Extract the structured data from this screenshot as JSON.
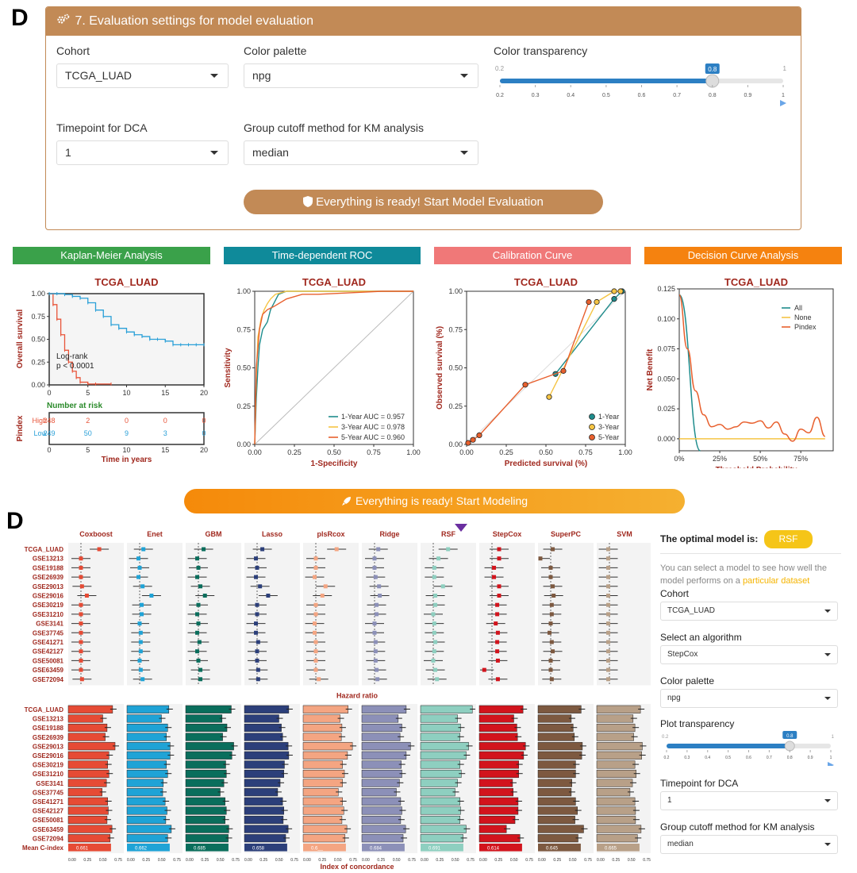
{
  "panel_letters": {
    "top": "D",
    "bottom": "D"
  },
  "settings": {
    "title": "7. Evaluation settings for model evaluation",
    "cohort_label": "Cohort",
    "cohort_value": "TCGA_LUAD",
    "palette_label": "Color palette",
    "palette_value": "npg",
    "transparency_label": "Color transparency",
    "transparency": {
      "min": 0.2,
      "max": 1,
      "value": 0.8,
      "min_label": "0.2",
      "max_label": "1",
      "value_label": "0.8",
      "ticks": [
        "0.2",
        "0.3",
        "0.4",
        "0.5",
        "0.6",
        "0.7",
        "0.8",
        "0.9",
        "1"
      ]
    },
    "timepoint_label": "Timepoint for DCA",
    "timepoint_value": "1",
    "cutoff_label": "Group cutoff method for KM analysis",
    "cutoff_value": "median",
    "eval_button": "Everything is ready! Start Model Evaluation"
  },
  "sections": {
    "km": "Kaplan-Meier Analysis",
    "roc": "Time-dependent ROC",
    "cal": "Calibration Curve",
    "dca": "Decision Curve Analysis"
  },
  "colors": {
    "km": "#3aa14a",
    "roc": "#0f8a9a",
    "cal": "#f07878",
    "dca": "#f5820f",
    "brown": "#c28a56",
    "dark_red": "#a0281e",
    "orange": "#f5a623"
  },
  "modeling_button": "Everything is ready! Start Modeling",
  "chart_data": [
    {
      "type": "line",
      "subtype": "kaplan-meier",
      "title": "TCGA_LUAD",
      "xlabel": "Time in years",
      "ylabel": "Overall survival",
      "xlim": [
        0,
        20
      ],
      "ylim": [
        0,
        1
      ],
      "x_ticks": [
        "0",
        "5",
        "10",
        "15",
        "20"
      ],
      "y_ticks": [
        "0.00",
        "0.25",
        "0.50",
        "0.75",
        "1.00"
      ],
      "series": [
        {
          "name": "High",
          "color": "#e8553a",
          "x": [
            0,
            0.5,
            1,
            1.5,
            2,
            2.5,
            3,
            3.5,
            4,
            5,
            6,
            8
          ],
          "y": [
            1.0,
            0.88,
            0.72,
            0.55,
            0.38,
            0.25,
            0.15,
            0.08,
            0.03,
            0.01,
            0.01,
            0.01
          ]
        },
        {
          "name": "Low",
          "color": "#2aa0d8",
          "x": [
            0,
            1,
            2,
            3,
            4,
            5,
            6,
            7,
            8,
            9,
            10,
            11,
            12,
            13,
            14,
            15,
            16,
            17,
            18,
            19,
            20
          ],
          "y": [
            1.0,
            1.0,
            0.99,
            0.97,
            0.95,
            0.9,
            0.82,
            0.75,
            0.66,
            0.62,
            0.58,
            0.55,
            0.53,
            0.5,
            0.5,
            0.48,
            0.44,
            0.44,
            0.44,
            0.44,
            0.44
          ]
        }
      ],
      "annotation": [
        "Log-rank",
        "p < 0.0001"
      ],
      "risk_table": {
        "title": "Number at risk",
        "group_label": "Pindex",
        "rows": [
          {
            "name": "High",
            "values": [
              "248",
              "2",
              "0",
              "0",
              "0"
            ]
          },
          {
            "name": "Low",
            "values": [
              "249",
              "50",
              "9",
              "3",
              "0"
            ]
          }
        ]
      }
    },
    {
      "type": "line",
      "subtype": "roc",
      "title": "TCGA_LUAD",
      "xlabel": "1-Specificity",
      "ylabel": "Sensitivity",
      "xlim": [
        0,
        1
      ],
      "ylim": [
        0,
        1
      ],
      "x_ticks": [
        "0.00",
        "0.25",
        "0.50",
        "0.75",
        "1.00"
      ],
      "y_ticks": [
        "0.00",
        "0.25",
        "0.50",
        "0.75",
        "1.00"
      ],
      "series": [
        {
          "name": "1-Year AUC = 0.957",
          "color": "#1e8c8c",
          "x": [
            0,
            0.01,
            0.02,
            0.03,
            0.05,
            0.08,
            0.1,
            0.12,
            0.15,
            0.2,
            0.5,
            1
          ],
          "y": [
            0,
            0.3,
            0.5,
            0.65,
            0.75,
            0.8,
            0.88,
            0.92,
            0.98,
            1,
            1,
            1
          ]
        },
        {
          "name": "3-Year AUC = 0.978",
          "color": "#f5c444",
          "x": [
            0,
            0.01,
            0.02,
            0.04,
            0.06,
            0.08,
            0.1,
            0.13,
            0.2,
            0.5,
            1
          ],
          "y": [
            0,
            0.45,
            0.7,
            0.82,
            0.88,
            0.92,
            0.95,
            0.98,
            1,
            1,
            1
          ]
        },
        {
          "name": "5-Year AUC = 0.960",
          "color": "#e8602e",
          "x": [
            0,
            0.01,
            0.03,
            0.05,
            0.08,
            0.12,
            0.2,
            0.3,
            0.4,
            0.6,
            0.8,
            1
          ],
          "y": [
            0,
            0.5,
            0.75,
            0.85,
            0.88,
            0.9,
            0.95,
            0.98,
            0.98,
            0.99,
            1,
            1
          ]
        }
      ]
    },
    {
      "type": "line",
      "subtype": "calibration",
      "title": "TCGA_LUAD",
      "xlabel": "Predicted survival (%)",
      "ylabel": "Observed survival (%)",
      "xlim": [
        0,
        1
      ],
      "ylim": [
        0,
        1
      ],
      "x_ticks": [
        "0.00",
        "0.25",
        "0.50",
        "0.75",
        "1.00"
      ],
      "y_ticks": [
        "0.00",
        "0.25",
        "0.50",
        "0.75",
        "1.00"
      ],
      "series": [
        {
          "name": "1-Year",
          "color": "#1e8c8c",
          "x": [
            0.56,
            0.93,
            0.98
          ],
          "y": [
            0.46,
            0.95,
            1.0
          ]
        },
        {
          "name": "3-Year",
          "color": "#f5c444",
          "x": [
            0.52,
            0.82,
            0.93,
            0.97
          ],
          "y": [
            0.31,
            0.93,
            1.0,
            1.0
          ]
        },
        {
          "name": "5-Year",
          "color": "#e8602e",
          "x": [
            0.01,
            0.04,
            0.08,
            0.37,
            0.61,
            0.77
          ],
          "y": [
            0.01,
            0.03,
            0.06,
            0.39,
            0.48,
            0.93
          ]
        }
      ]
    },
    {
      "type": "line",
      "subtype": "decision-curve",
      "title": "TCGA_LUAD",
      "xlabel": "Threshold Probability",
      "ylabel": "Net Benefit",
      "xlim": [
        0,
        0.95
      ],
      "ylim": [
        -0.01,
        0.125
      ],
      "x_ticks": [
        "0%",
        "25%",
        "50%",
        "75%"
      ],
      "y_ticks": [
        "0.000",
        "0.025",
        "0.050",
        "0.075",
        "0.100",
        "0.125"
      ],
      "series": [
        {
          "name": "All",
          "color": "#1e8c8c",
          "x": [
            0,
            0.13
          ],
          "y": [
            0.12,
            -0.01
          ]
        },
        {
          "name": "None",
          "color": "#f5c444",
          "x": [
            0,
            0.9
          ],
          "y": [
            0,
            0
          ]
        },
        {
          "name": "Pindex",
          "color": "#e8602e",
          "x": [
            0,
            0.05,
            0.1,
            0.15,
            0.2,
            0.25,
            0.3,
            0.35,
            0.4,
            0.45,
            0.5,
            0.55,
            0.6,
            0.65,
            0.7,
            0.75,
            0.8,
            0.85,
            0.9
          ],
          "y": [
            0.12,
            0.075,
            0.04,
            0.02,
            0.01,
            0.012,
            0.008,
            0.01,
            0.014,
            0.013,
            0.015,
            0.009,
            0.014,
            0.004,
            -0.002,
            0.008,
            0.005,
            0.018,
            0.002
          ]
        }
      ]
    },
    {
      "type": "scatter",
      "subtype": "forest",
      "xlabel": "Hazard ratio",
      "models": [
        "Coxboost",
        "Enet",
        "GBM",
        "Lasso",
        "plsRcox",
        "Ridge",
        "RSF",
        "StepCox",
        "SuperPC",
        "SVM"
      ],
      "model_colors": [
        "#e64b35",
        "#1fa3d6",
        "#0a6e5c",
        "#2c3f7a",
        "#f4a582",
        "#8c90b8",
        "#8ecfc0",
        "#d2141d",
        "#7d5940",
        "#b8a088"
      ],
      "datasets": [
        "TCGA_LUAD",
        "GSE13213",
        "GSE19188",
        "GSE26939",
        "GSE29013",
        "GSE29016",
        "GSE30219",
        "GSE31210",
        "GSE3141",
        "GSE37745",
        "GSE41271",
        "GSE42127",
        "GSE50081",
        "GSE63459",
        "GSE72094"
      ],
      "hr": [
        [
          5.2,
          1.0,
          1.0,
          1.0,
          1.1,
          1.7,
          1.0,
          1.0,
          1.0,
          1.0,
          1.0,
          1.0,
          1.0,
          1.0,
          1.1
        ],
        [
          1.4,
          0.9,
          1.0,
          0.9,
          1.3,
          2.9,
          1.2,
          1.2,
          1.0,
          1.1,
          1.1,
          1.1,
          1.0,
          1.1,
          1.3
        ],
        [
          1.6,
          0.9,
          1.0,
          0.9,
          1.2,
          1.8,
          1.0,
          0.9,
          1.0,
          0.9,
          1.1,
          0.9,
          1.0,
          1.2,
          1.2
        ],
        [
          1.6,
          0.9,
          1.0,
          0.9,
          1.3,
          2.7,
          1.0,
          1.0,
          0.9,
          0.9,
          1.1,
          1.0,
          1.0,
          1.1,
          1.1
        ],
        [
          6.5,
          1.0,
          1.0,
          0.9,
          2.4,
          1.8,
          1.0,
          1.0,
          0.9,
          0.9,
          1.0,
          1.0,
          1.0,
          1.0,
          1.3
        ],
        [
          1.4,
          1.0,
          1.0,
          1.1,
          1.5,
          1.6,
          1.2,
          1.2,
          1.0,
          1.0,
          1.1,
          1.1,
          1.1,
          1.2,
          1.3
        ],
        [
          3.8,
          1.6,
          1.1,
          1.1,
          2.4,
          1.2,
          1.2,
          1.0,
          1.1,
          1.1,
          1.2,
          1.1,
          1.0,
          1.2,
          1.4
        ],
        [
          1.9,
          1.9,
          1.2,
          1.2,
          1.9,
          1.9,
          1.6,
          1.6,
          1.4,
          1.7,
          1.6,
          1.6,
          1.7,
          0.5,
          1.7
        ],
        [
          1.2,
          0.3,
          1.0,
          1.0,
          1.2,
          1.3,
          1.1,
          1.1,
          1.0,
          0.9,
          1.1,
          1.2,
          1.0,
          1.0,
          1.1
        ],
        [
          0.9,
          0.9,
          0.9,
          0.9,
          0.9,
          0.9,
          0.9,
          0.9,
          0.9,
          0.9,
          0.9,
          0.9,
          0.9,
          0.9,
          0.9
        ]
      ]
    },
    {
      "type": "bar",
      "subtype": "c-index",
      "xlabel": "Index of concordance",
      "x_ticks": [
        "0.00",
        "0.25",
        "0.50",
        "0.75"
      ],
      "mean_label": "Mean C-index",
      "means": [
        "0.661",
        "0.662",
        "0.685",
        "0.658",
        "0.6__",
        "0.684",
        "0.691",
        "0.614",
        "0.645",
        "0.665"
      ],
      "values": [
        [
          0.72,
          0.56,
          0.63,
          0.6,
          0.76,
          0.66,
          0.64,
          0.66,
          0.62,
          0.55,
          0.64,
          0.65,
          0.63,
          0.71,
          0.68
        ],
        [
          0.68,
          0.56,
          0.66,
          0.64,
          0.7,
          0.7,
          0.64,
          0.66,
          0.59,
          0.58,
          0.62,
          0.65,
          0.63,
          0.72,
          0.66
        ],
        [
          0.74,
          0.59,
          0.67,
          0.6,
          0.78,
          0.75,
          0.65,
          0.66,
          0.62,
          0.56,
          0.64,
          0.66,
          0.64,
          0.7,
          0.69
        ],
        [
          0.72,
          0.56,
          0.6,
          0.62,
          0.71,
          0.72,
          0.65,
          0.64,
          0.58,
          0.54,
          0.62,
          0.64,
          0.63,
          0.71,
          0.67
        ],
        [
          0.73,
          0.6,
          0.63,
          0.62,
          0.8,
          0.72,
          0.64,
          0.67,
          0.64,
          0.57,
          0.64,
          0.66,
          0.63,
          0.71,
          0.68
        ],
        [
          0.72,
          0.59,
          0.65,
          0.62,
          0.79,
          0.72,
          0.64,
          0.65,
          0.61,
          0.56,
          0.63,
          0.65,
          0.63,
          0.71,
          0.67
        ],
        [
          0.84,
          0.6,
          0.65,
          0.64,
          0.78,
          0.74,
          0.64,
          0.66,
          0.6,
          0.56,
          0.64,
          0.65,
          0.64,
          0.74,
          0.69
        ],
        [
          0.71,
          0.56,
          0.61,
          0.62,
          0.75,
          0.72,
          0.64,
          0.64,
          0.54,
          0.55,
          0.63,
          0.63,
          0.58,
          0.44,
          0.66
        ],
        [
          0.7,
          0.54,
          0.57,
          0.59,
          0.72,
          0.71,
          0.61,
          0.61,
          0.55,
          0.54,
          0.61,
          0.64,
          0.6,
          0.74,
          0.65
        ],
        [
          0.71,
          0.59,
          0.62,
          0.6,
          0.74,
          0.73,
          0.62,
          0.64,
          0.58,
          0.54,
          0.62,
          0.63,
          0.63,
          0.72,
          0.66
        ]
      ]
    }
  ],
  "sidebar": {
    "optimal_label": "The optimal model is:",
    "optimal_value": "RSF",
    "hint_text": "You can select a model to see how well the model performs on a ",
    "hint_link": "particular dataset",
    "cohort_label": "Cohort",
    "cohort_value": "TCGA_LUAD",
    "algo_label": "Select an algorithm",
    "algo_value": "StepCox",
    "palette_label": "Color palette",
    "palette_value": "npg",
    "transparency_label": "Plot transparency",
    "transparency": {
      "min_label": "0.2",
      "max_label": "1",
      "value_label": "0.8",
      "value": 0.8,
      "ticks": [
        "0.2",
        "0.3",
        "0.4",
        "0.5",
        "0.6",
        "0.7",
        "0.8",
        "0.9",
        "1"
      ]
    },
    "timepoint_label": "Timepoint for DCA",
    "timepoint_value": "1",
    "cutoff_label": "Group cutoff method for KM analysis",
    "cutoff_value": "median"
  }
}
